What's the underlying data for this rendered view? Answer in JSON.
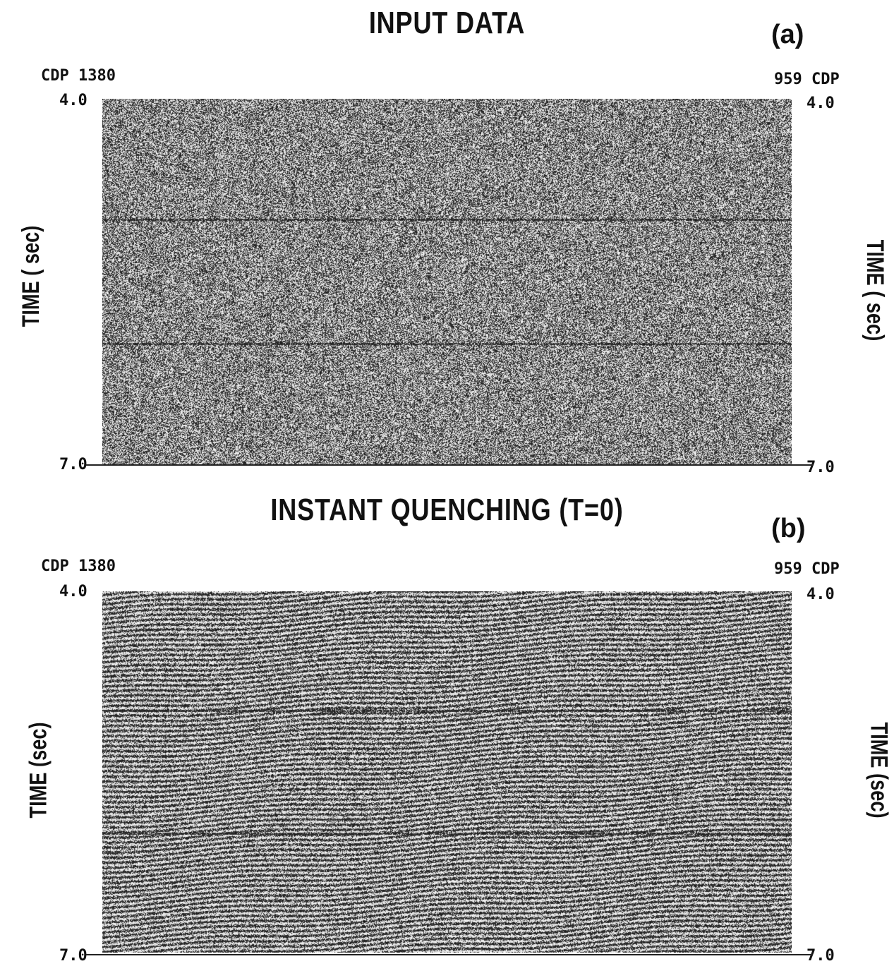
{
  "panels": [
    {
      "title": "INPUT DATA",
      "tag": "(a)",
      "left_cdp": "CDP 1380",
      "right_cdp": "959 CDP",
      "top_time": "4.0",
      "bottom_time": "7.0",
      "left_axis_label": "TIME ( sec)",
      "right_axis_label": "TIME ( sec)"
    },
    {
      "title": "INSTANT QUENCHING (T=0)",
      "tag": "(b)",
      "left_cdp": "CDP 1380",
      "right_cdp": "959 CDP",
      "top_time": "4.0",
      "bottom_time": "7.0",
      "left_axis_label": "TIME (sec)",
      "right_axis_label": "TIME (sec)"
    }
  ]
}
